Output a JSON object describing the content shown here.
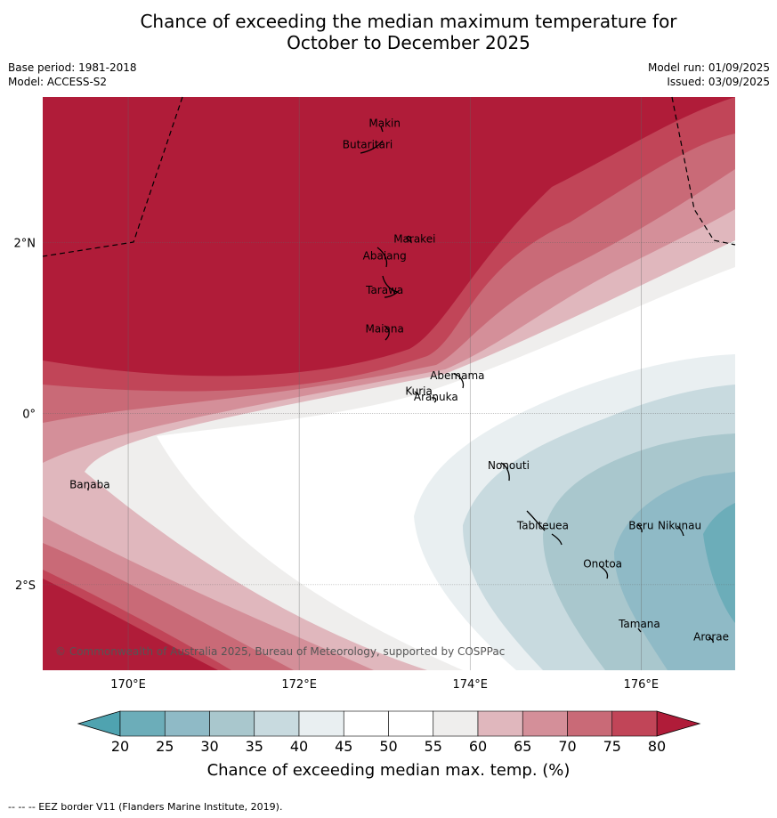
{
  "header": {
    "title_line1": "Chance of exceeding the median maximum temperature for",
    "title_line2": "October to December 2025",
    "base_period": "Base period: 1981-2018",
    "model": "Model: ACCESS-S2",
    "model_run": "Model run: 01/09/2025",
    "issued": "Issued: 03/09/2025"
  },
  "map": {
    "lon_range": [
      169.0,
      177.1
    ],
    "lat_range": [
      -3.0,
      3.7
    ],
    "lon_ticks": [
      {
        "v": 170,
        "label": "170°E"
      },
      {
        "v": 172,
        "label": "172°E"
      },
      {
        "v": 174,
        "label": "174°E"
      },
      {
        "v": 176,
        "label": "176°E"
      }
    ],
    "lat_ticks": [
      {
        "v": 2,
        "label": "2°N"
      },
      {
        "v": 0,
        "label": "0°"
      },
      {
        "v": -2,
        "label": "2°S"
      }
    ],
    "places": [
      {
        "name": "Makin",
        "lon": 173.0,
        "lat": 3.35
      },
      {
        "name": "Butaritari",
        "lon": 172.8,
        "lat": 3.1
      },
      {
        "name": "Marakei",
        "lon": 173.35,
        "lat": 2.0
      },
      {
        "name": "Abaiang",
        "lon": 173.0,
        "lat": 1.8
      },
      {
        "name": "Tarawa",
        "lon": 173.0,
        "lat": 1.4
      },
      {
        "name": "Maiana",
        "lon": 173.0,
        "lat": 0.95
      },
      {
        "name": "Abemama",
        "lon": 173.85,
        "lat": 0.4
      },
      {
        "name": "Kuria",
        "lon": 173.4,
        "lat": 0.22
      },
      {
        "name": "Aranuka",
        "lon": 173.6,
        "lat": 0.15
      },
      {
        "name": "Nonouti",
        "lon": 174.45,
        "lat": -0.65
      },
      {
        "name": "Banaba",
        "lon": 169.55,
        "lat": -0.87
      },
      {
        "name": "Tabiteuea",
        "lon": 174.85,
        "lat": -1.35
      },
      {
        "name": "Beru",
        "lon": 176.0,
        "lat": -1.35
      },
      {
        "name": "Nikunau",
        "lon": 176.45,
        "lat": -1.35
      },
      {
        "name": "Onotoa",
        "lon": 175.55,
        "lat": -1.8
      },
      {
        "name": "Tamana",
        "lon": 175.98,
        "lat": -2.5
      },
      {
        "name": "Arorae",
        "lon": 176.82,
        "lat": -2.65
      }
    ],
    "copyright": "© Commonwealth of Australia 2025, Bureau of Meteorology, supported by COSPPac"
  },
  "colorbar": {
    "levels": [
      "20",
      "25",
      "30",
      "35",
      "40",
      "45",
      "50",
      "55",
      "60",
      "65",
      "70",
      "75",
      "80"
    ],
    "colors": [
      "#6cadb9",
      "#8fbac6",
      "#a9c7cd",
      "#c8dadf",
      "#e9eff1",
      "#ffffff",
      "#ffffff",
      "#efeeed",
      "#e0b7bd",
      "#d48f99",
      "#c96a77",
      "#c14558"
    ],
    "under_color": "#4fa3b0",
    "over_color": "#b01c39",
    "label": "Chance of exceeding median max. temp. (%)"
  },
  "footnote": "--  --  -- EEZ border V11 (Flanders Marine Institute, 2019)."
}
